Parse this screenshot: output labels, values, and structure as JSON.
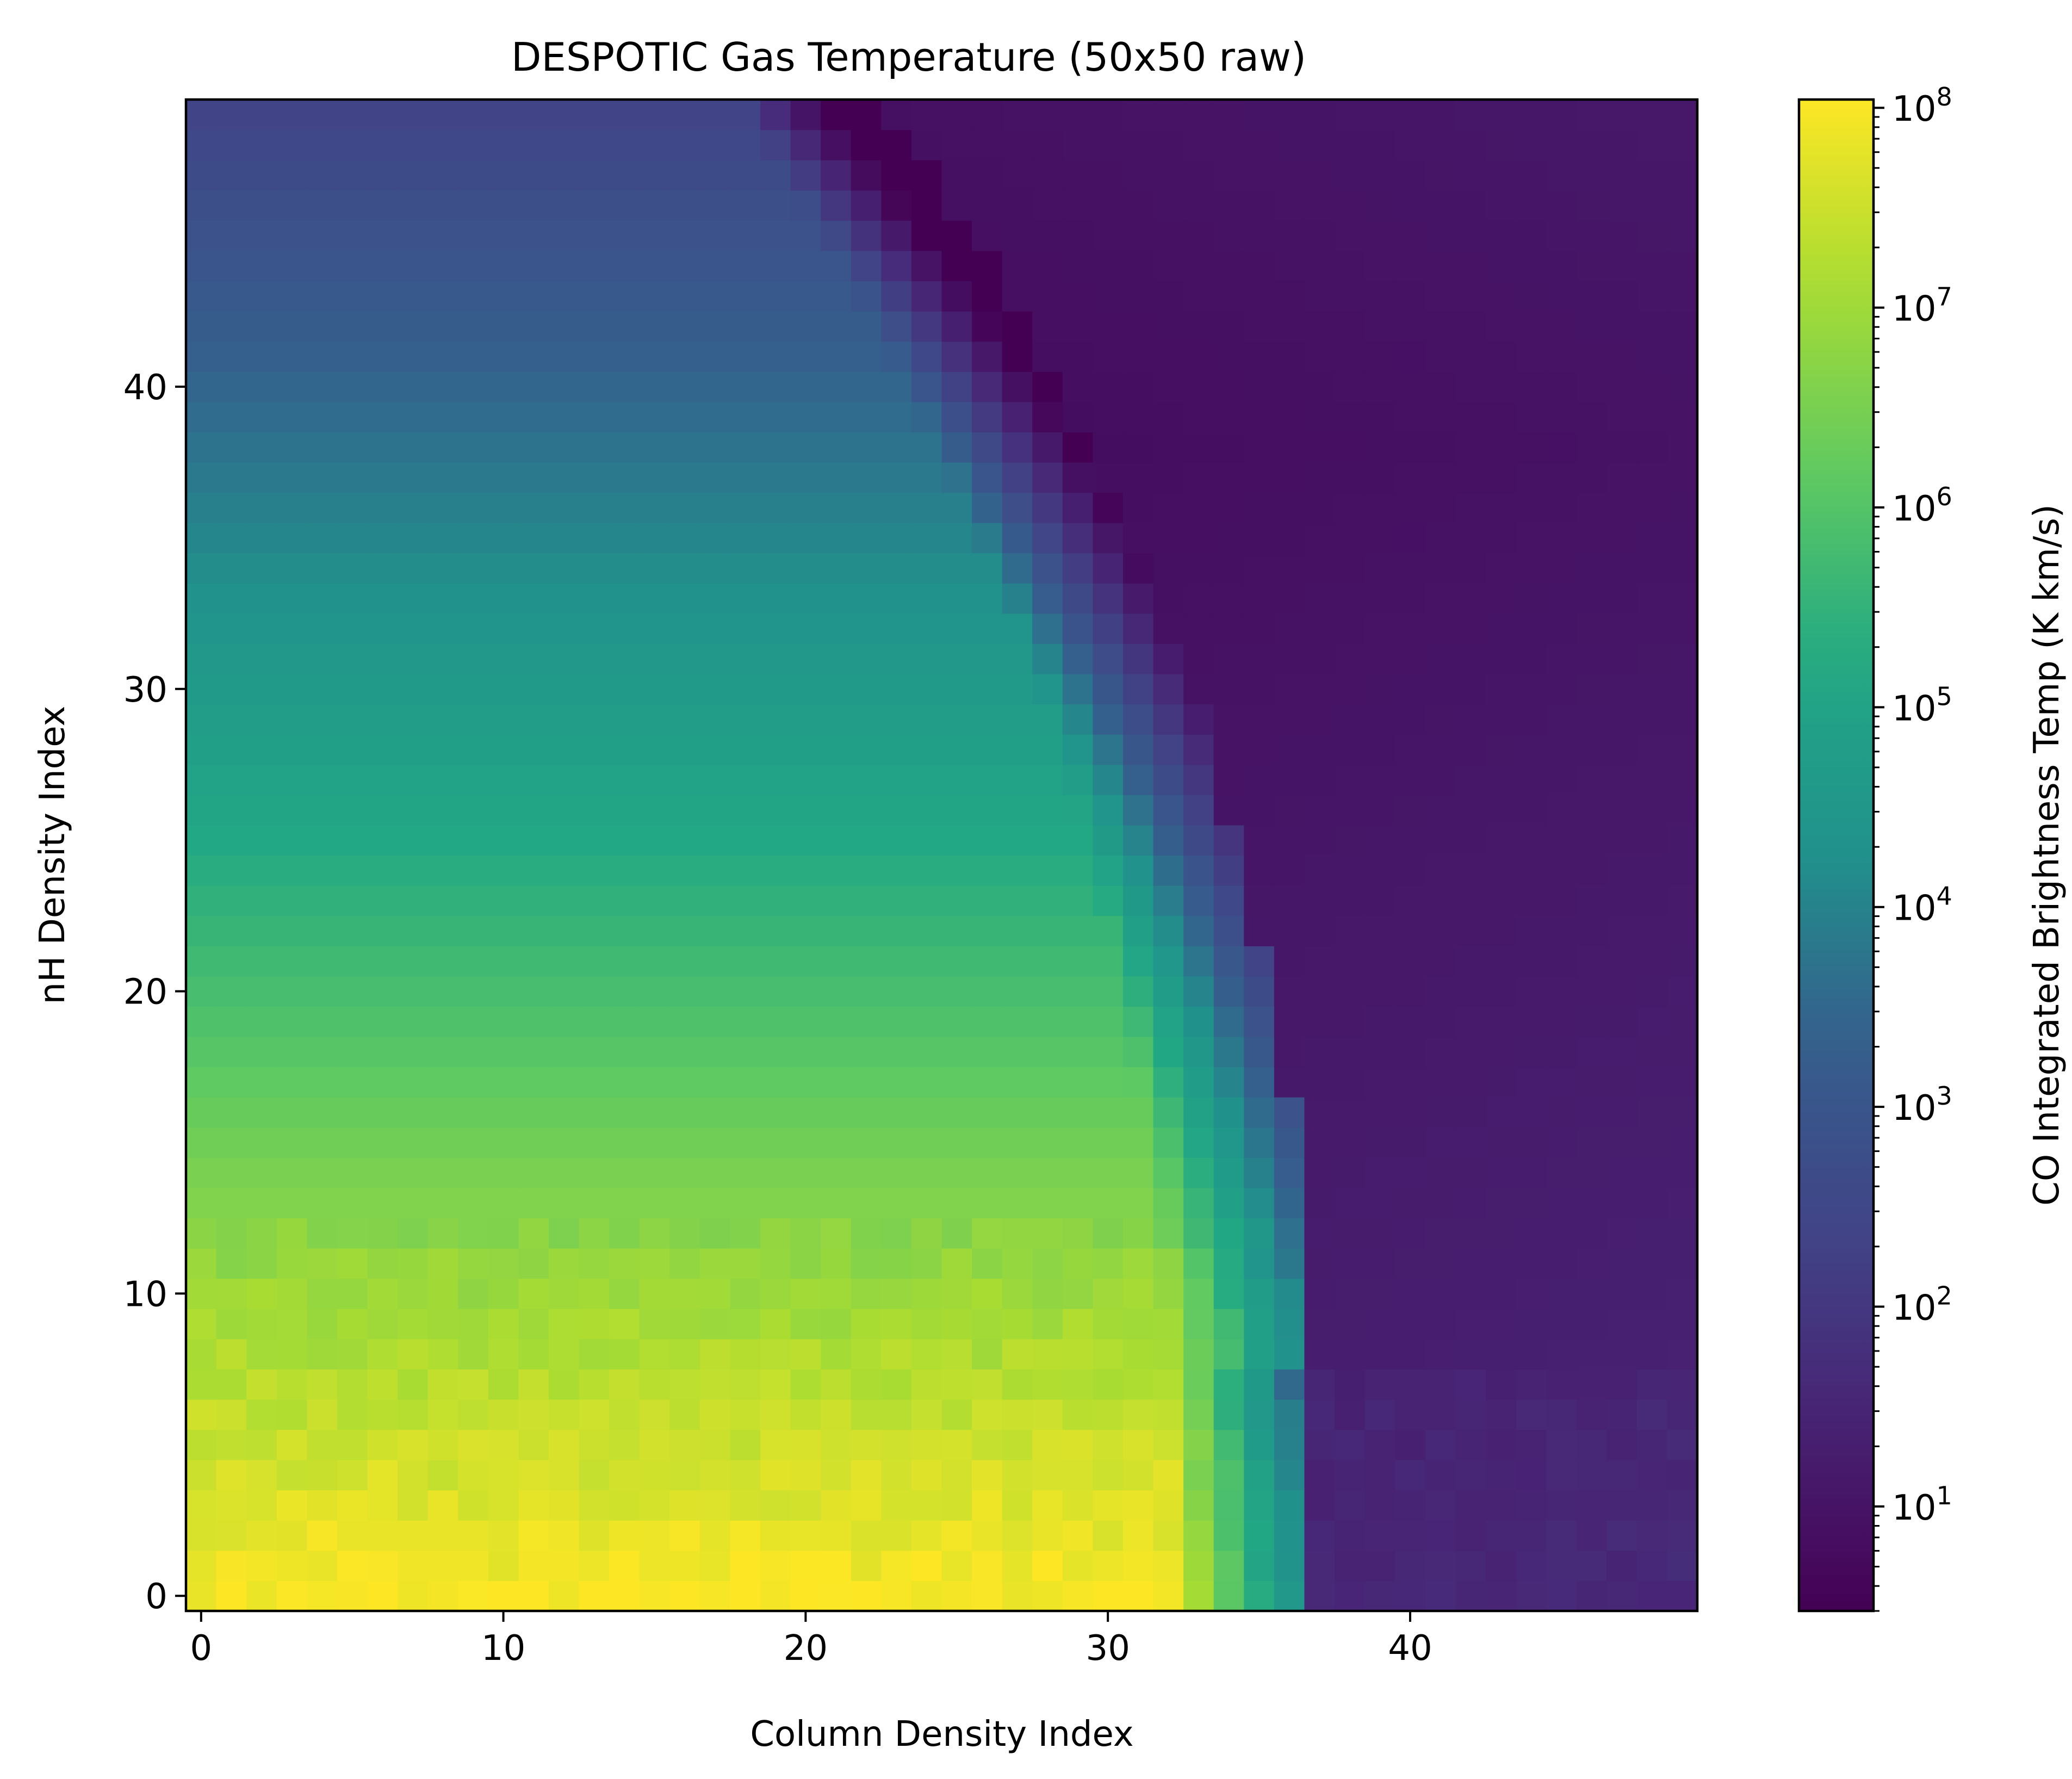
{
  "chart_data": {
    "type": "heatmap",
    "title": "DESPOTIC Gas Temperature (50x50 raw)",
    "xlabel": "Column Density Index",
    "ylabel": "nH Density Index",
    "xlim": [
      -0.5,
      49.5
    ],
    "ylim": [
      -0.5,
      49.5
    ],
    "xticks": [
      0,
      10,
      20,
      30,
      40
    ],
    "yticks": [
      0,
      10,
      20,
      30,
      40
    ],
    "grid": false,
    "colormap": "viridis",
    "colorbar": {
      "label": "CO Integrated Brightness Temp (K km/s)",
      "scale": "log",
      "range": [
        3,
        110000000
      ],
      "ticks": [
        {
          "value": 10,
          "base": "10",
          "exp": "1"
        },
        {
          "value": 100,
          "base": "10",
          "exp": "2"
        },
        {
          "value": 1000,
          "base": "10",
          "exp": "3"
        },
        {
          "value": 10000,
          "base": "10",
          "exp": "4"
        },
        {
          "value": 100000,
          "base": "10",
          "exp": "5"
        },
        {
          "value": 1000000,
          "base": "10",
          "exp": "6"
        },
        {
          "value": 10000000,
          "base": "10",
          "exp": "7"
        },
        {
          "value": 100000000,
          "base": "10",
          "exp": "8"
        }
      ]
    },
    "grid_size": [
      50,
      50
    ],
    "data_description": "Approximate log10 values: high (~1e7-1e8) at low nH and low column index, decreasing with nH to ~1e2 near top; sharp drop to ~3-10 beyond a boundary curving from column ~37 at low nH to ~23 at top."
  }
}
